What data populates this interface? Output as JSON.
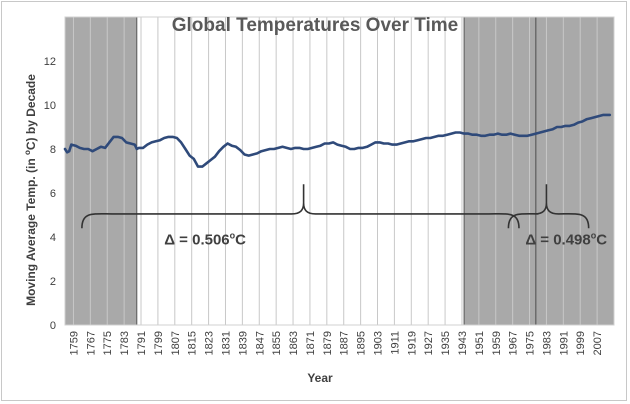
{
  "chart_data": {
    "type": "line",
    "title": "Global Temperatures Over Time",
    "xlabel": "Year",
    "ylabel_parts": [
      "Moving Average Temp. (in ",
      "o",
      "C) by Decade"
    ],
    "xlim": [
      1755,
      2015
    ],
    "ylim": [
      0,
      14
    ],
    "y_ticks": [
      0,
      2,
      4,
      6,
      8,
      10,
      12
    ],
    "x_ticks": [
      1759,
      1767,
      1775,
      1783,
      1791,
      1799,
      1807,
      1815,
      1823,
      1831,
      1839,
      1847,
      1855,
      1863,
      1871,
      1879,
      1887,
      1895,
      1903,
      1911,
      1919,
      1927,
      1935,
      1943,
      1951,
      1959,
      1967,
      1975,
      1983,
      1991,
      1999,
      2007
    ],
    "grid": "vertical",
    "shaded_periods": [
      [
        1755,
        1789
      ],
      [
        1944,
        1978
      ],
      [
        1978,
        2015
      ]
    ],
    "series": [
      {
        "color": "#2f4a7a",
        "x": [
          1755,
          1756,
          1757,
          1758,
          1760,
          1762,
          1764,
          1766,
          1768,
          1770,
          1772,
          1774,
          1776,
          1778,
          1780,
          1782,
          1784,
          1786,
          1788,
          1789,
          1790,
          1792,
          1794,
          1796,
          1798,
          1800,
          1802,
          1804,
          1806,
          1808,
          1810,
          1812,
          1814,
          1816,
          1818,
          1820,
          1822,
          1824,
          1826,
          1828,
          1830,
          1832,
          1834,
          1836,
          1838,
          1840,
          1842,
          1844,
          1846,
          1848,
          1850,
          1852,
          1854,
          1856,
          1858,
          1860,
          1862,
          1864,
          1866,
          1868,
          1870,
          1872,
          1874,
          1876,
          1878,
          1880,
          1882,
          1884,
          1886,
          1888,
          1890,
          1892,
          1894,
          1896,
          1898,
          1900,
          1902,
          1904,
          1906,
          1908,
          1910,
          1912,
          1914,
          1916,
          1918,
          1920,
          1922,
          1924,
          1926,
          1928,
          1930,
          1932,
          1934,
          1936,
          1938,
          1940,
          1942,
          1944,
          1946,
          1948,
          1950,
          1952,
          1954,
          1956,
          1958,
          1960,
          1962,
          1964,
          1966,
          1968,
          1970,
          1972,
          1974,
          1976,
          1978,
          1980,
          1982,
          1984,
          1986,
          1988,
          1990,
          1992,
          1994,
          1996,
          1998,
          2000,
          2002,
          2004,
          2006,
          2008,
          2010,
          2012,
          2013
        ],
        "y": [
          8.0,
          7.85,
          7.9,
          8.2,
          8.15,
          8.05,
          8.0,
          8.0,
          7.9,
          8.0,
          8.1,
          8.05,
          8.3,
          8.55,
          8.55,
          8.5,
          8.3,
          8.25,
          8.2,
          8.0,
          8.05,
          8.05,
          8.2,
          8.3,
          8.35,
          8.4,
          8.5,
          8.55,
          8.55,
          8.5,
          8.3,
          8.0,
          7.7,
          7.55,
          7.2,
          7.2,
          7.35,
          7.5,
          7.65,
          7.9,
          8.1,
          8.25,
          8.15,
          8.1,
          7.95,
          7.75,
          7.7,
          7.75,
          7.8,
          7.9,
          7.95,
          8.0,
          8.0,
          8.05,
          8.1,
          8.05,
          8.0,
          8.05,
          8.05,
          8.0,
          8.0,
          8.05,
          8.1,
          8.15,
          8.25,
          8.25,
          8.3,
          8.2,
          8.15,
          8.1,
          8.0,
          8.0,
          8.05,
          8.05,
          8.1,
          8.2,
          8.3,
          8.3,
          8.25,
          8.25,
          8.2,
          8.2,
          8.25,
          8.3,
          8.35,
          8.35,
          8.4,
          8.45,
          8.5,
          8.5,
          8.55,
          8.6,
          8.6,
          8.65,
          8.7,
          8.75,
          8.75,
          8.7,
          8.7,
          8.65,
          8.65,
          8.6,
          8.6,
          8.65,
          8.65,
          8.7,
          8.65,
          8.65,
          8.7,
          8.65,
          8.6,
          8.6,
          8.6,
          8.65,
          8.7,
          8.75,
          8.8,
          8.85,
          8.9,
          9.0,
          9.0,
          9.05,
          9.05,
          9.1,
          9.2,
          9.25,
          9.35,
          9.4,
          9.45,
          9.5,
          9.55,
          9.55,
          9.55
        ]
      }
    ],
    "annotations": [
      {
        "label_parts": [
          "Δ = 0.506",
          "o",
          "C"
        ],
        "from_year": 1763,
        "to_year": 1970,
        "apex_year": 1868,
        "bracket_y": 4.4,
        "peak_y": 6.4,
        "label_x_year": 1802,
        "label_y": 3.65
      },
      {
        "label_parts": [
          "Δ = 0.498",
          "o",
          "C"
        ],
        "from_year": 1965,
        "to_year": 2003,
        "apex_year": 1983,
        "bracket_y": 4.4,
        "peak_y": 6.4,
        "label_x_year": 1973,
        "label_y": 3.65
      }
    ]
  }
}
